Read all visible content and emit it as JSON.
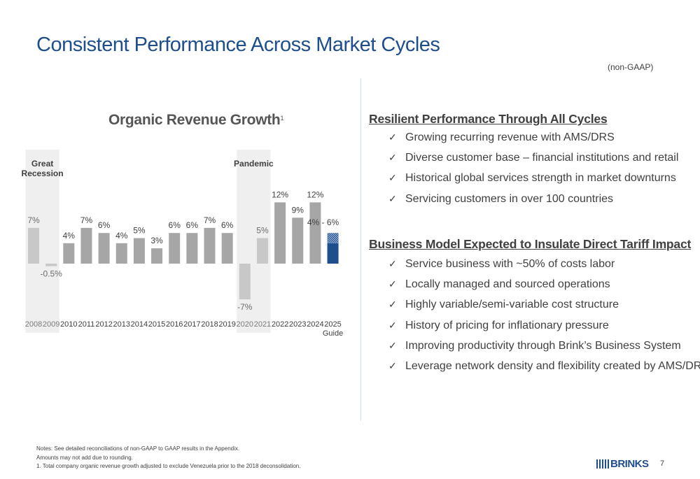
{
  "header": {
    "title": "Consistent Performance Across Market Cycles",
    "subtitle": "(non-GAAP)"
  },
  "chart_data": {
    "type": "bar",
    "title": "Organic Revenue Growth",
    "title_footnote": "1",
    "categories": [
      "2008",
      "2009",
      "2010",
      "2011",
      "2012",
      "2013",
      "2014",
      "2015",
      "2016",
      "2017",
      "2018",
      "2019",
      "2020",
      "2021",
      "2022",
      "2023",
      "2024",
      "2025"
    ],
    "category_sublabels": {
      "2025": "Guide"
    },
    "values": [
      7,
      -0.5,
      4,
      7,
      6,
      4,
      5,
      3,
      6,
      6,
      7,
      6,
      -7,
      5,
      12,
      9,
      12,
      null
    ],
    "labels": [
      "7%",
      "-0.5%",
      "4%",
      "7%",
      "6%",
      "4%",
      "5%",
      "3%",
      "6%",
      "6%",
      "7%",
      "6%",
      "-7%",
      "5%",
      "12%",
      "9%",
      "12%",
      "4% - 6%"
    ],
    "guide_range": {
      "category": "2025",
      "low": 4,
      "high": 6
    },
    "highlight_periods": [
      {
        "label_lines": [
          "Great",
          "Recession"
        ],
        "categories": [
          "2008",
          "2009"
        ]
      },
      {
        "label_lines": [
          "Pandemic"
        ],
        "categories": [
          "2020",
          "2021"
        ]
      }
    ],
    "ylim": [
      -8,
      13.5
    ],
    "grid": false,
    "colors": {
      "bar": "#a6a6a6",
      "highlight_bar": "#c8c8c8",
      "guide_low": "#1f4e8c",
      "guide_high": "#4a78b5",
      "band": "#efefef"
    }
  },
  "right": {
    "section1": {
      "heading": "Resilient Performance Through All Cycles",
      "items": [
        "Growing recurring revenue with AMS/DRS",
        "Diverse customer base – financial institutions and retail",
        "Historical global services strength in market downturns",
        "Servicing customers in over 100 countries"
      ]
    },
    "section2": {
      "heading": "Business Model Expected to Insulate Direct Tariff Impact",
      "items": [
        "Service business with ~50% of costs labor",
        "Locally managed and sourced operations",
        "Highly variable/semi-variable cost structure",
        "History of pricing for inflationary pressure",
        "Improving productivity through Brink’s Business System",
        "Leverage network density and flexibility created by AMS/DRS"
      ]
    },
    "check_glyph": "✓"
  },
  "footer": {
    "notes": [
      "Notes: See detailed reconciliations of non-GAAP to GAAP results in the Appendix.",
      "Amounts may not add due to rounding.",
      "1.  Total company organic revenue growth adjusted to exclude Venezuela prior to the 2018 deconsolidation."
    ],
    "logo_text": "BRINKS",
    "page_number": "7"
  },
  "colors": {
    "title": "#1f4e8c",
    "text": "#404040",
    "divider": "#cfe0f0"
  }
}
